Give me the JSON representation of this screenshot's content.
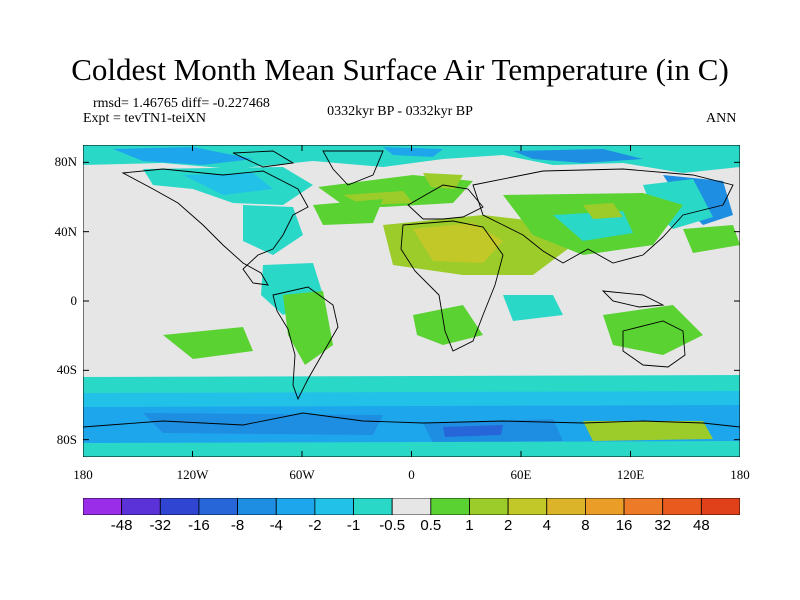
{
  "title": "Coldest Month Mean Surface Air Temperature (in C)",
  "stats": {
    "rmsd_line": "rmsd= 1.46765 diff= -0.227468",
    "expt_line": "Expt = tevTN1-teiXN"
  },
  "period": "0332kyr BP - 0332kyr BP",
  "season": "ANN",
  "map": {
    "lat_ticks": [
      "80N",
      "40N",
      "0",
      "40S",
      "80S"
    ],
    "lon_ticks": [
      "180",
      "120W",
      "60W",
      "0",
      "60E",
      "120E",
      "180"
    ],
    "lat_values": [
      80,
      40,
      0,
      -40,
      -80
    ],
    "lon_values": [
      -180,
      -120,
      -60,
      0,
      60,
      120,
      180
    ],
    "lat_range": [
      -90,
      90
    ],
    "lon_range": [
      -180,
      180
    ],
    "ocean_color": "#e6e6e6",
    "coast_color": "#000000"
  },
  "colorbar": {
    "labels": [
      "-48",
      "-32",
      "-16",
      "-8",
      "-4",
      "-2",
      "-1",
      "-0.5",
      "0.5",
      "1",
      "2",
      "4",
      "8",
      "16",
      "32",
      "48"
    ],
    "colors": [
      "#9a2ee8",
      "#5a32d8",
      "#3046d2",
      "#2666d8",
      "#1e8ee2",
      "#1ea6ec",
      "#22c2e8",
      "#2ad8c8",
      "#e6e6e6",
      "#5ad232",
      "#9ccc2a",
      "#c2c828",
      "#dcb42a",
      "#ea9e28",
      "#ec7a26",
      "#e85a1e",
      "#e0401a"
    ]
  }
}
